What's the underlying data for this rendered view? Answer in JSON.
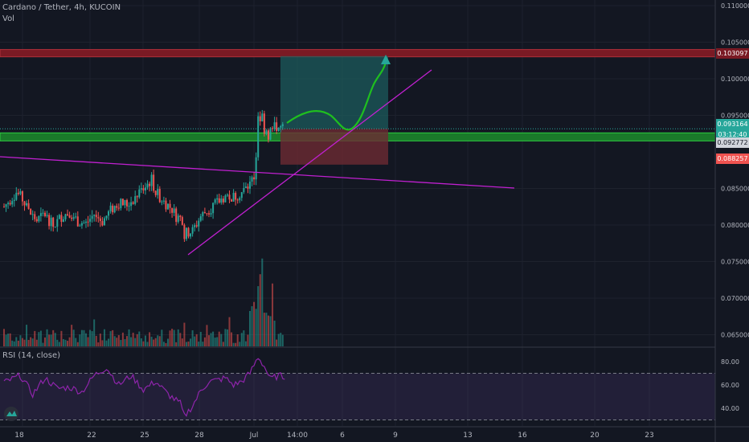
{
  "header": {
    "symbol": "Cardano / Tether, 4h, KUCOIN",
    "volume_label": "Vol"
  },
  "rsi": {
    "label": "RSI (14, close)",
    "levels": [
      "80.00",
      "60.00",
      "40.00"
    ]
  },
  "colors": {
    "up": "#26a69a",
    "down": "#ef5350",
    "rsi_line": "#8e24aa",
    "trend": "#c020d0",
    "projection": "#1fbf1f",
    "target_zone": "#1c5f5f",
    "stop_zone": "#6d2b33",
    "resistance": "#7a1a24",
    "support": "#1a7a2a"
  },
  "price_labels": {
    "target": "0.103097",
    "current": "0.093164",
    "countdown": "03:12:40",
    "support": "0.092772",
    "stop": "0.088257"
  },
  "chart_data": {
    "type": "candlestick",
    "symbol": "ADA/USDT",
    "timeframe": "4h",
    "exchange": "KUCOIN",
    "y_ticks": [
      "0.110000",
      "0.105000",
      "0.100000",
      "0.095000",
      "0.085000",
      "0.080000",
      "0.075000",
      "0.070000",
      "0.065000"
    ],
    "ylim": [
      0.0615,
      0.1105
    ],
    "x_ticks": [
      "18",
      "22",
      "25",
      "28",
      "Jul",
      "14:00",
      "6",
      "9",
      "13",
      "16",
      "20",
      "23"
    ],
    "rsi_ticks": [
      "80.00",
      "60.00",
      "40.00"
    ],
    "close_path": [
      [
        0,
        0.0825
      ],
      [
        6,
        0.0845
      ],
      [
        9,
        0.0835
      ],
      [
        12,
        0.0818
      ],
      [
        16,
        0.0806
      ],
      [
        20,
        0.0815
      ],
      [
        24,
        0.0798
      ],
      [
        28,
        0.0812
      ],
      [
        32,
        0.0818
      ],
      [
        36,
        0.0805
      ],
      [
        40,
        0.0802
      ],
      [
        44,
        0.0815
      ],
      [
        48,
        0.0805
      ],
      [
        52,
        0.082
      ],
      [
        56,
        0.083
      ],
      [
        60,
        0.0828
      ],
      [
        64,
        0.0838
      ],
      [
        68,
        0.085
      ],
      [
        72,
        0.0862
      ],
      [
        74,
        0.0845
      ],
      [
        78,
        0.0832
      ],
      [
        82,
        0.0822
      ],
      [
        84,
        0.0812
      ],
      [
        87,
        0.0808
      ],
      [
        88,
        0.0788
      ],
      [
        92,
        0.0792
      ],
      [
        96,
        0.0812
      ],
      [
        100,
        0.0822
      ],
      [
        104,
        0.083
      ],
      [
        108,
        0.084
      ],
      [
        112,
        0.0838
      ],
      [
        116,
        0.0845
      ],
      [
        120,
        0.0855
      ],
      [
        122,
        0.087
      ],
      [
        123,
        0.09
      ],
      [
        124,
        0.0955
      ],
      [
        126,
        0.0945
      ],
      [
        128,
        0.0935
      ],
      [
        130,
        0.0925
      ],
      [
        132,
        0.0935
      ],
      [
        136,
        0.0932
      ]
    ],
    "rsi_path": [
      [
        0,
        62
      ],
      [
        8,
        68
      ],
      [
        14,
        52
      ],
      [
        20,
        66
      ],
      [
        26,
        57
      ],
      [
        32,
        58
      ],
      [
        38,
        54
      ],
      [
        44,
        68
      ],
      [
        50,
        75
      ],
      [
        56,
        60
      ],
      [
        62,
        68
      ],
      [
        68,
        56
      ],
      [
        74,
        63
      ],
      [
        80,
        52
      ],
      [
        86,
        44
      ],
      [
        88,
        33
      ],
      [
        92,
        42
      ],
      [
        96,
        55
      ],
      [
        100,
        63
      ],
      [
        104,
        64
      ],
      [
        108,
        66
      ],
      [
        112,
        60
      ],
      [
        116,
        63
      ],
      [
        120,
        70
      ],
      [
        124,
        84
      ],
      [
        127,
        76
      ],
      [
        130,
        65
      ],
      [
        134,
        68
      ],
      [
        137,
        67
      ]
    ],
    "annotations": {
      "resistance_zone": [
        0.103,
        0.104
      ],
      "support_zone": [
        0.0915,
        0.0926
      ],
      "target_price": 0.103097,
      "current_price": 0.093164,
      "support_price": 0.092772,
      "stop_price": 0.088257
    }
  }
}
